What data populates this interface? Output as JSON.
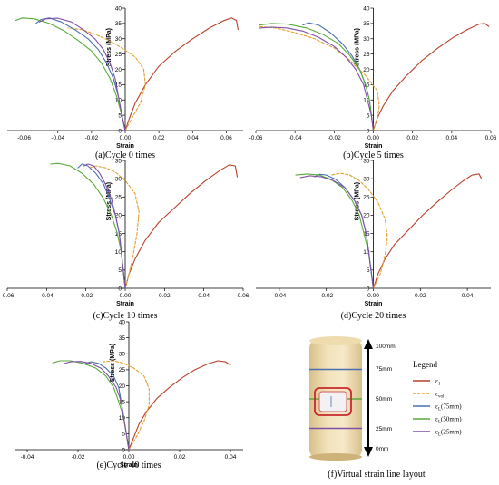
{
  "colors": {
    "axial": "#b8402c",
    "vol": "#e0a030",
    "l75": "#4a6fb0",
    "l50": "#5aaa3c",
    "l25": "#8050a8"
  },
  "chart_data": [
    {
      "type": "line",
      "caption": "(a)Cycle 0 times",
      "xlabel": "Strain",
      "ylabel": "Stress (MPa)",
      "xlim": [
        -0.07,
        0.07
      ],
      "ylim": [
        0,
        40
      ],
      "xticks": [
        -0.06,
        -0.04,
        -0.02,
        0.0,
        0.02,
        0.04,
        0.06
      ],
      "xtick_labels": [
        "-0.06",
        "-0.04",
        "-0.02",
        "0.00",
        "0.02",
        "0.04",
        "0.06"
      ],
      "yticks": [
        0,
        5,
        10,
        15,
        20,
        25,
        30,
        35,
        40
      ],
      "series": [
        {
          "key": "axial",
          "dashed": false,
          "x": [
            0,
            0.0025,
            0.006,
            0.012,
            0.02,
            0.03,
            0.04,
            0.05,
            0.058,
            0.063,
            0.066,
            0.067
          ],
          "y": [
            0,
            4,
            9,
            15,
            21,
            26,
            30,
            33.5,
            35.8,
            36.8,
            36,
            33
          ]
        },
        {
          "key": "vol",
          "dashed": true,
          "x": [
            0,
            0.004,
            0.009,
            0.012,
            0.011,
            0.006,
            -0.002,
            -0.01,
            -0.018,
            -0.026,
            -0.034
          ],
          "y": [
            0,
            4,
            9,
            15,
            20,
            24,
            27,
            29.5,
            31.5,
            33,
            33.5
          ]
        },
        {
          "key": "l75",
          "dashed": false,
          "x": [
            0,
            -0.002,
            -0.004,
            -0.007,
            -0.011,
            -0.016,
            -0.022,
            -0.03,
            -0.038,
            -0.045,
            -0.05,
            -0.053
          ],
          "y": [
            0,
            5,
            11,
            17,
            22,
            26.5,
            30,
            33,
            35.5,
            36.8,
            36.3,
            35
          ]
        },
        {
          "key": "l50",
          "dashed": false,
          "x": [
            0,
            -0.002,
            -0.005,
            -0.009,
            -0.014,
            -0.02,
            -0.028,
            -0.036,
            -0.045,
            -0.054,
            -0.061,
            -0.065
          ],
          "y": [
            0,
            5,
            11,
            17,
            22,
            26,
            29.5,
            32.5,
            35,
            36.5,
            36.8,
            36
          ]
        },
        {
          "key": "l25",
          "dashed": false,
          "x": [
            0,
            -0.002,
            -0.004,
            -0.006,
            -0.009,
            -0.013,
            -0.018,
            -0.025,
            -0.032,
            -0.04,
            -0.047,
            -0.051
          ],
          "y": [
            0,
            5,
            11,
            17,
            22,
            26.5,
            30,
            33,
            35.5,
            36.7,
            36.5,
            35.5
          ]
        }
      ]
    },
    {
      "type": "line",
      "caption": "(b)Cycle 5 times",
      "xlabel": "Strain",
      "ylabel": "Stress (MPa)",
      "xlim": [
        -0.06,
        0.06
      ],
      "ylim": [
        0,
        40
      ],
      "xticks": [
        -0.06,
        -0.04,
        -0.02,
        0.0,
        0.02,
        0.04,
        0.06
      ],
      "xtick_labels": [
        "-0.06",
        "-0.04",
        "-0.02",
        "0.00",
        "0.02",
        "0.04",
        "0.06"
      ],
      "yticks": [
        0,
        5,
        10,
        15,
        20,
        25,
        30,
        35,
        40
      ],
      "series": [
        {
          "key": "axial",
          "dashed": false,
          "x": [
            0,
            0.002,
            0.005,
            0.01,
            0.017,
            0.025,
            0.033,
            0.041,
            0.048,
            0.054,
            0.057,
            0.059
          ],
          "y": [
            0,
            4,
            8,
            13,
            18,
            23,
            27,
            30.5,
            33,
            34.8,
            35,
            34
          ]
        },
        {
          "key": "vol",
          "dashed": true,
          "x": [
            0,
            0.002,
            0.003,
            0.002,
            -0.004,
            -0.012,
            -0.02,
            -0.03,
            -0.04,
            -0.05,
            -0.058
          ],
          "y": [
            0,
            4,
            8,
            13,
            18,
            23,
            27,
            30,
            32,
            33.5,
            34
          ]
        },
        {
          "key": "l75",
          "dashed": false,
          "x": [
            0,
            -0.001,
            -0.002,
            -0.004,
            -0.007,
            -0.011,
            -0.016,
            -0.022,
            -0.028,
            -0.033,
            -0.036
          ],
          "y": [
            0,
            5,
            10,
            15,
            20,
            24.5,
            28.5,
            32,
            34.5,
            35.2,
            34.5
          ]
        },
        {
          "key": "l50",
          "dashed": false,
          "x": [
            0,
            -0.001,
            -0.002,
            -0.004,
            -0.007,
            -0.012,
            -0.018,
            -0.026,
            -0.034,
            -0.044,
            -0.052,
            -0.058
          ],
          "y": [
            0,
            5,
            10,
            15,
            20,
            24.5,
            28.5,
            31.5,
            33.5,
            34.8,
            35,
            34.5
          ]
        },
        {
          "key": "l25",
          "dashed": false,
          "x": [
            0,
            -0.001,
            -0.003,
            -0.005,
            -0.009,
            -0.014,
            -0.02,
            -0.028,
            -0.036,
            -0.044,
            -0.052,
            -0.058
          ],
          "y": [
            0,
            5,
            10,
            15,
            20,
            24,
            27.5,
            30.5,
            32.5,
            33.5,
            33.8,
            33.5
          ]
        }
      ]
    },
    {
      "type": "line",
      "caption": "(c)Cycle 10 times",
      "xlabel": "Strain",
      "ylabel": "Stress (MPa)",
      "xlim": [
        -0.06,
        0.06
      ],
      "ylim": [
        0,
        35
      ],
      "xticks": [
        -0.06,
        -0.04,
        -0.02,
        0.0,
        0.02,
        0.04,
        0.06
      ],
      "xtick_labels": [
        "-0.06",
        "-0.04",
        "-0.02",
        "0.00",
        "0.02",
        "0.04",
        "0.06"
      ],
      "yticks": [
        0,
        5,
        10,
        15,
        20,
        25,
        30,
        35
      ],
      "series": [
        {
          "key": "axial",
          "dashed": false,
          "x": [
            0,
            0.002,
            0.005,
            0.01,
            0.017,
            0.025,
            0.033,
            0.041,
            0.048,
            0.053,
            0.056,
            0.057
          ],
          "y": [
            0,
            4,
            8,
            13,
            18,
            22,
            26,
            29.5,
            32.2,
            33.8,
            33.5,
            30.5
          ]
        },
        {
          "key": "vol",
          "dashed": true,
          "x": [
            0,
            0.002,
            0.004,
            0.006,
            0.007,
            0.005,
            0.0,
            -0.005,
            -0.01,
            -0.015,
            -0.018
          ],
          "y": [
            0,
            4,
            9,
            15,
            21,
            26,
            29.5,
            31.8,
            33,
            33.5,
            33
          ]
        },
        {
          "key": "l75",
          "dashed": false,
          "x": [
            0,
            -0.001,
            -0.002,
            -0.003,
            -0.005,
            -0.008,
            -0.011,
            -0.015,
            -0.019,
            -0.022,
            -0.024
          ],
          "y": [
            0,
            5,
            10,
            15,
            20,
            24.5,
            28.5,
            31.5,
            33.5,
            34,
            33
          ]
        },
        {
          "key": "l50",
          "dashed": false,
          "x": [
            0,
            -0.001,
            -0.002,
            -0.004,
            -0.007,
            -0.011,
            -0.016,
            -0.022,
            -0.028,
            -0.034,
            -0.038
          ],
          "y": [
            0,
            5,
            10,
            15,
            20,
            24.5,
            28.5,
            31.5,
            33.5,
            34.2,
            34
          ]
        },
        {
          "key": "l25",
          "dashed": false,
          "x": [
            0,
            -0.001,
            -0.002,
            -0.003,
            -0.005,
            -0.007,
            -0.01,
            -0.013,
            -0.016,
            -0.019,
            -0.021
          ],
          "y": [
            0,
            5,
            10,
            15,
            20,
            24.5,
            28.5,
            31.5,
            33.5,
            34,
            33.5
          ]
        }
      ]
    },
    {
      "type": "line",
      "caption": "(d)Cycle 20 times",
      "xlabel": "Strain",
      "ylabel": "Stress (MPa)",
      "xlim": [
        -0.05,
        0.05
      ],
      "ylim": [
        0,
        35
      ],
      "xticks": [
        -0.04,
        -0.02,
        0.0,
        0.02,
        0.04
      ],
      "xtick_labels": [
        "-0.04",
        "-0.02",
        "0.00",
        "0.02",
        "0.04"
      ],
      "yticks": [
        0,
        5,
        10,
        15,
        20,
        25,
        30,
        35
      ],
      "series": [
        {
          "key": "axial",
          "dashed": false,
          "x": [
            0,
            0.002,
            0.005,
            0.009,
            0.015,
            0.021,
            0.027,
            0.033,
            0.038,
            0.042,
            0.045,
            0.046
          ],
          "y": [
            0,
            4,
            8,
            12,
            16,
            20,
            23.5,
            26.8,
            29.3,
            31,
            31.3,
            30
          ]
        },
        {
          "key": "vol",
          "dashed": true,
          "x": [
            0,
            0.003,
            0.005,
            0.006,
            0.005,
            0.002,
            -0.002,
            -0.006,
            -0.01,
            -0.014,
            -0.018
          ],
          "y": [
            0,
            4,
            9,
            14,
            19,
            23.5,
            27,
            29.5,
            31,
            31.5,
            31
          ]
        },
        {
          "key": "l75",
          "dashed": false,
          "x": [
            0,
            -0.001,
            -0.002,
            -0.003,
            -0.005,
            -0.008,
            -0.012,
            -0.016,
            -0.02,
            -0.023,
            -0.025
          ],
          "y": [
            0,
            5,
            10,
            15,
            20,
            24,
            27.5,
            29.8,
            31,
            31.2,
            30.5
          ]
        },
        {
          "key": "l50",
          "dashed": false,
          "x": [
            0,
            -0.001,
            -0.002,
            -0.004,
            -0.006,
            -0.009,
            -0.013,
            -0.018,
            -0.023,
            -0.028,
            -0.033
          ],
          "y": [
            0,
            5,
            10,
            15,
            20,
            24,
            27.5,
            29.8,
            31,
            31.3,
            31
          ]
        },
        {
          "key": "l25",
          "dashed": false,
          "x": [
            0,
            -0.001,
            -0.002,
            -0.003,
            -0.005,
            -0.008,
            -0.012,
            -0.017,
            -0.022,
            -0.027,
            -0.031
          ],
          "y": [
            0,
            5,
            10,
            15,
            20,
            24,
            27.5,
            29.5,
            30.5,
            30.8,
            30.3
          ]
        }
      ]
    },
    {
      "type": "line",
      "caption": "(e)Cycle 40 times",
      "xlabel": "Strain",
      "ylabel": "Stress (MPa)",
      "xlim": [
        -0.045,
        0.045
      ],
      "ylim": [
        0,
        40
      ],
      "xticks": [
        -0.04,
        -0.02,
        0.0,
        0.02,
        0.04
      ],
      "xtick_labels": [
        "-0.04",
        "-0.02",
        "0.00",
        "0.02",
        "0.04"
      ],
      "yticks": [
        0,
        5,
        10,
        15,
        20,
        25,
        30,
        35,
        40
      ],
      "series": [
        {
          "key": "axial",
          "dashed": false,
          "x": [
            0,
            0.002,
            0.004,
            0.007,
            0.011,
            0.016,
            0.021,
            0.026,
            0.031,
            0.035,
            0.038,
            0.04
          ],
          "y": [
            0,
            4,
            8,
            12,
            16,
            19.5,
            22.5,
            25,
            26.8,
            27.8,
            27.5,
            26.5
          ]
        },
        {
          "key": "vol",
          "dashed": true,
          "x": [
            0,
            0.003,
            0.006,
            0.008,
            0.008,
            0.006,
            0.002,
            -0.002,
            -0.006,
            -0.01
          ],
          "y": [
            0,
            4,
            9,
            14,
            19,
            23,
            25.5,
            27,
            27.8,
            27.5
          ]
        },
        {
          "key": "l75",
          "dashed": false,
          "x": [
            0,
            -0.001,
            -0.002,
            -0.003,
            -0.004,
            -0.006,
            -0.009,
            -0.012,
            -0.015,
            -0.017
          ],
          "y": [
            0,
            5,
            10,
            15,
            19.5,
            23,
            25.5,
            27,
            27.5,
            27
          ]
        },
        {
          "key": "l50",
          "dashed": false,
          "x": [
            0,
            -0.001,
            -0.002,
            -0.004,
            -0.006,
            -0.009,
            -0.013,
            -0.018,
            -0.023,
            -0.027,
            -0.03
          ],
          "y": [
            0,
            5,
            10,
            15,
            19.5,
            23,
            25.5,
            27,
            27.8,
            27.8,
            27.2
          ]
        },
        {
          "key": "l25",
          "dashed": false,
          "x": [
            0,
            -0.001,
            -0.002,
            -0.003,
            -0.005,
            -0.008,
            -0.011,
            -0.015,
            -0.019,
            -0.023,
            -0.026
          ],
          "y": [
            0,
            5,
            10,
            15,
            19.5,
            23,
            25.5,
            27,
            27.6,
            27.5,
            26.8
          ]
        }
      ]
    }
  ],
  "layout_panel": {
    "caption": "(f)Virtual strain line layout",
    "legend_title": "Legend",
    "legend_items": [
      {
        "key": "axial",
        "dashed": false,
        "sym": "ε",
        "sub": "1"
      },
      {
        "key": "vol",
        "dashed": true,
        "sym": "ε",
        "sub": "vol"
      },
      {
        "key": "l75",
        "dashed": false,
        "sym": "ε",
        "sub": "L",
        "suffix": "(75mm)"
      },
      {
        "key": "l50",
        "dashed": false,
        "sym": "ε",
        "sub": "L",
        "suffix": "(50mm)"
      },
      {
        "key": "l25",
        "dashed": false,
        "sym": "ε",
        "sub": "L",
        "suffix": "(25mm)"
      }
    ],
    "height_labels": [
      "100mm",
      "75mm",
      "50mm",
      "25mm",
      "0mm"
    ],
    "line_heights": [
      {
        "key": "l75",
        "value": 75
      },
      {
        "key": "l50",
        "value": 50
      },
      {
        "key": "l25",
        "value": 25
      }
    ]
  }
}
